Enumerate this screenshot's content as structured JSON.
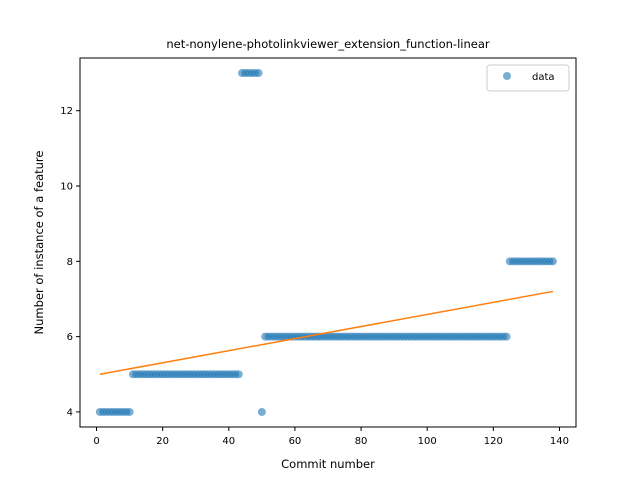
{
  "chart_data": {
    "type": "scatter",
    "title": "net-nonylene-photolinkviewer_extension_function-linear",
    "xlabel": "Commit number",
    "ylabel": "Number of instance of a feature",
    "xlim": [
      -5,
      145
    ],
    "ylim": [
      3.6,
      13.4
    ],
    "x_ticks": [
      0,
      20,
      40,
      60,
      80,
      100,
      120,
      140
    ],
    "y_ticks": [
      4,
      6,
      8,
      10,
      12
    ],
    "grid": false,
    "legend": {
      "position": "top-right",
      "entries": [
        "data"
      ]
    },
    "colors": {
      "data": "#1f77b4",
      "fit": "#ff7f0e"
    },
    "series": [
      {
        "name": "data",
        "kind": "scatter",
        "segments": [
          {
            "x_start": 1,
            "x_end": 10,
            "y": 4
          },
          {
            "x_start": 11,
            "x_end": 43,
            "y": 5
          },
          {
            "x_start": 44,
            "x_end": 49,
            "y": 13
          },
          {
            "x_start": 50,
            "x_end": 50,
            "y": 4
          },
          {
            "x_start": 51,
            "x_end": 124,
            "y": 6
          },
          {
            "x_start": 125,
            "x_end": 138,
            "y": 8
          }
        ]
      },
      {
        "kind": "line",
        "x": [
          1,
          138
        ],
        "y": [
          5.0,
          7.2
        ]
      }
    ]
  }
}
